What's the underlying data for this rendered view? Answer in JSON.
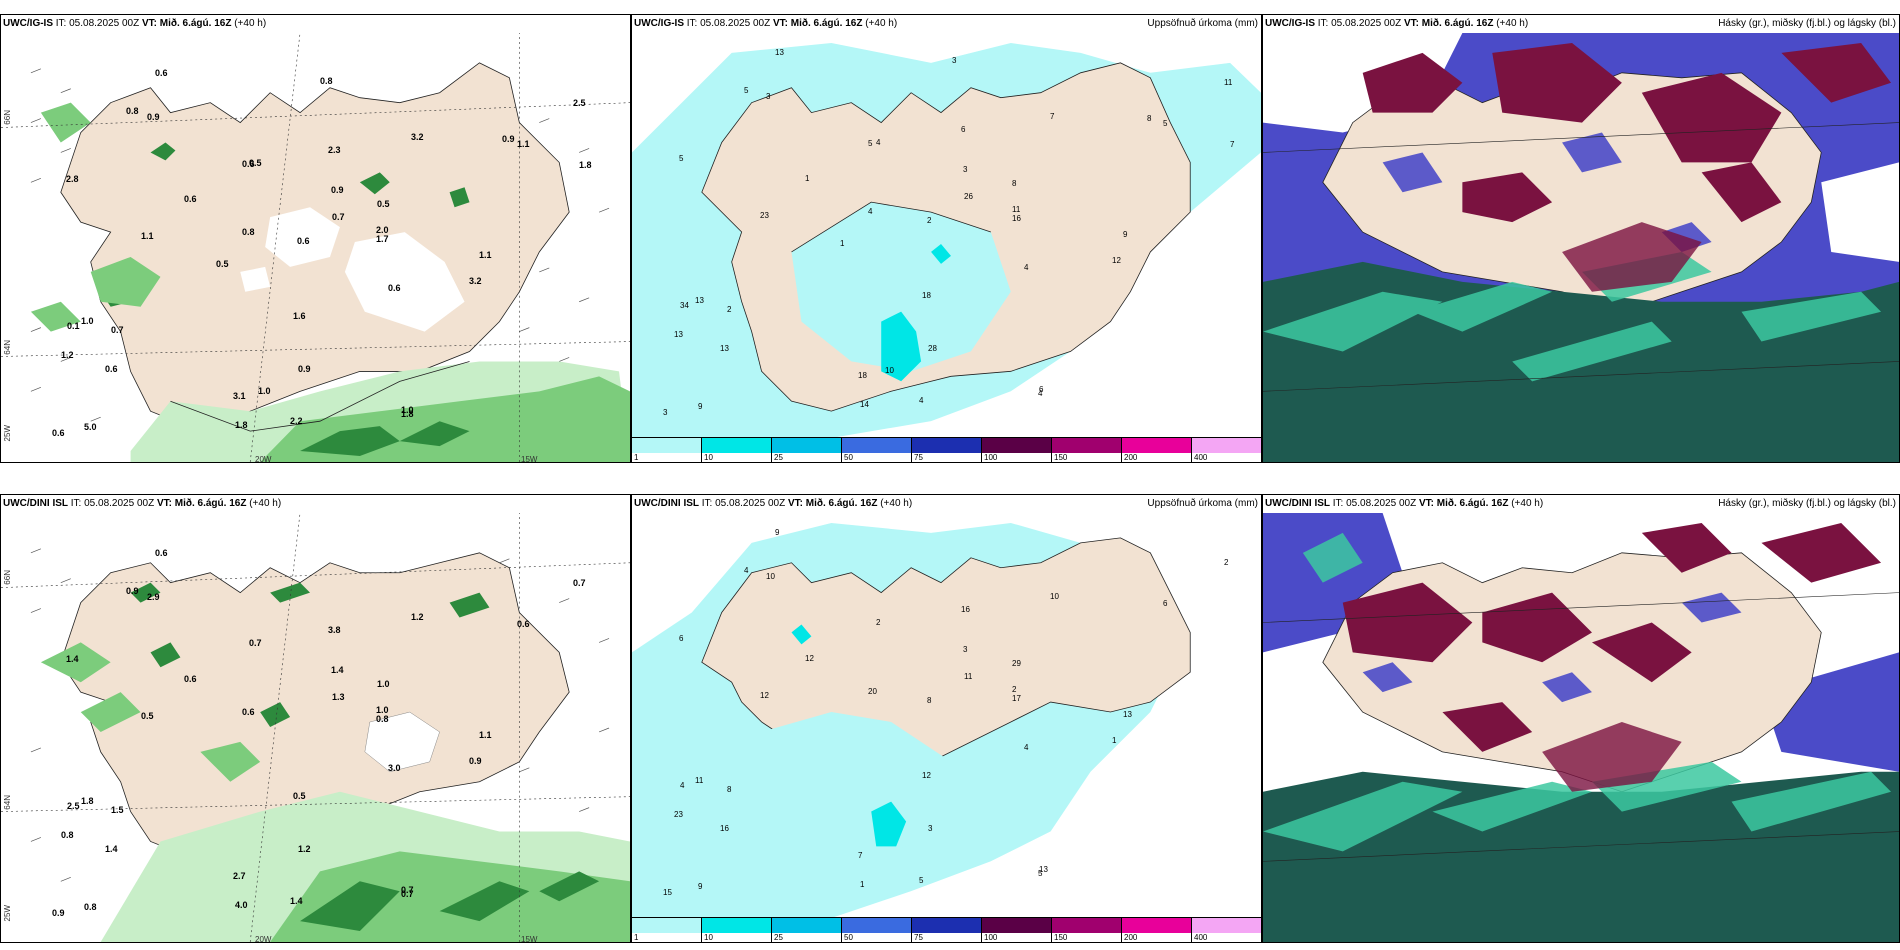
{
  "rows": [
    {
      "model": "UWC/IG-IS",
      "it_label": "IT:",
      "it_value": "05.08.2025 00Z",
      "vt_label": "VT:",
      "vt_value": "Mið. 6.ágú. 16Z",
      "lead": "(+40 h)"
    },
    {
      "model": "UWC/DINI ISL",
      "it_label": "IT:",
      "it_value": "05.08.2025 00Z",
      "vt_label": "VT:",
      "vt_value": "Mið. 6.ágú. 16Z",
      "lead": "(+40 h)"
    }
  ],
  "precip_title": "Uppsöfnuð úrkoma (mm)",
  "cloud_title": "Hásky (gr.), miðsky (fj.bl.) og lágsky (bl.)",
  "axis_labels": {
    "lat_66": "66N",
    "lat_64": "64N",
    "lon_25": "25W",
    "lon_20": "20W",
    "lon_15": "15W"
  },
  "colorbar": {
    "levels": [
      "1",
      "10",
      "25",
      "50",
      "75",
      "100",
      "150",
      "200",
      "400"
    ],
    "colors": [
      "#b4f7f7",
      "#00e6e6",
      "#00bfe6",
      "#3a6be0",
      "#1c2fb0",
      "#5a0046",
      "#a0006e",
      "#e8009a",
      "#f4a6f4"
    ]
  },
  "map_colors": {
    "land": "#f2e2d2",
    "glacier": "#ffffff",
    "precip_light": "#b4f7f7",
    "precip_mid": "#00e6e6",
    "green_light": "#c8eec8",
    "green_mid": "#7ccc7c",
    "green_dark": "#2d8a3d",
    "cloud_high": "#1e5a50",
    "cloud_mid": "#3cc8a0",
    "cloud_low": "#4b4bc8",
    "cloud_maroon": "#7a1240"
  },
  "top_left_values": [
    "0.9",
    "0.5",
    "0.9",
    "0.7",
    "0.6",
    "0.6",
    "2.8",
    "1.0",
    "0.6",
    "2.0",
    "3.2",
    "0.8",
    "1.1",
    "3.1",
    "5.0",
    "1.0",
    "3.2",
    "1.8",
    "1.7",
    "0.6",
    "1.6",
    "0.8",
    "2.5",
    "1.1",
    "0.6",
    "0.5",
    "1.2",
    "0.7",
    "1.8",
    "0.9",
    "0.1",
    "2.3",
    "2.2",
    "1.1",
    "0.6",
    "0.5",
    "0.6",
    "0.8",
    "1.0",
    "0.9",
    "1.8"
  ],
  "top_mid_values": [
    "3",
    "4",
    "3",
    "2",
    "4",
    "1",
    "5",
    "6",
    "13",
    "11",
    "12",
    "4",
    "23",
    "18",
    "9",
    "13",
    "7",
    "4",
    "16",
    "13",
    "18",
    "5",
    "11",
    "9",
    "3",
    "8",
    "13",
    "26",
    "14",
    "28",
    "34",
    "6",
    "4",
    "5",
    "2",
    "1",
    "5",
    "3",
    "10",
    "8",
    "7"
  ],
  "bottom_left_values": [
    "1.4",
    "0.7",
    "2.9",
    "1.5",
    "3.0",
    "0.6",
    "1.4",
    "0.7",
    "0.6",
    "1.0",
    "0.9",
    "0.6",
    "0.5",
    "2.7",
    "0.8",
    "1.8",
    "1.2",
    "0.7",
    "0.8",
    "1.4",
    "0.5",
    "0.9",
    "0.7",
    "1.1",
    "0.9",
    "1.0",
    "0.8",
    "1.3",
    "4.0",
    "1.2",
    "2.5",
    "3.8",
    "1.4",
    "0.6"
  ],
  "bottom_mid_values": [
    "3",
    "2",
    "10",
    "8",
    "4",
    "12",
    "6",
    "13",
    "9",
    "2",
    "1",
    "20",
    "12",
    "7",
    "9",
    "11",
    "10",
    "5",
    "17",
    "16",
    "12",
    "4",
    "2",
    "13",
    "15",
    "29",
    "23",
    "11",
    "1",
    "3",
    "4",
    "16",
    "5",
    "6",
    "8"
  ]
}
